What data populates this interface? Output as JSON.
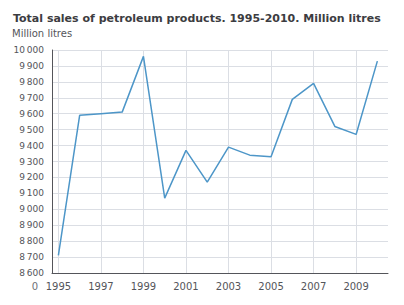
{
  "chart_data": {
    "type": "line",
    "title": "Total sales of petroleum products. 1995-2010. Million litres",
    "ylabel": "Million litres",
    "annotations": [
      "0"
    ],
    "x": [
      1995,
      1996,
      1997,
      1998,
      1999,
      2000,
      2001,
      2002,
      2003,
      2004,
      2005,
      2006,
      2007,
      2008,
      2009,
      2010
    ],
    "values": [
      8710,
      9590,
      9600,
      9610,
      9960,
      9070,
      9370,
      9170,
      9390,
      9340,
      9330,
      9690,
      9790,
      9520,
      9470,
      9930
    ],
    "color": "#4d96c8",
    "xlim": [
      1994.7,
      2010.5
    ],
    "xticks": [
      1995,
      1997,
      1999,
      2001,
      2003,
      2005,
      2007,
      2009
    ],
    "ylim": [
      8600,
      10000
    ],
    "yticks": [
      {
        "value": 8600,
        "label": "8 600"
      },
      {
        "value": 8700,
        "label": "8 700"
      },
      {
        "value": 8800,
        "label": "8 800"
      },
      {
        "value": 8900,
        "label": "8 900"
      },
      {
        "value": 9000,
        "label": "9 000"
      },
      {
        "value": 9100,
        "label": "9 100"
      },
      {
        "value": 9200,
        "label": "9 200"
      },
      {
        "value": 9300,
        "label": "9 300"
      },
      {
        "value": 9400,
        "label": "9 400"
      },
      {
        "value": 9500,
        "label": "9 500"
      },
      {
        "value": 9600,
        "label": "9 600"
      },
      {
        "value": 9700,
        "label": "9 700"
      },
      {
        "value": 9800,
        "label": "9 800"
      },
      {
        "value": 9900,
        "label": "9 900"
      },
      {
        "value": 10000,
        "label": "10 000"
      }
    ],
    "grid": true
  }
}
